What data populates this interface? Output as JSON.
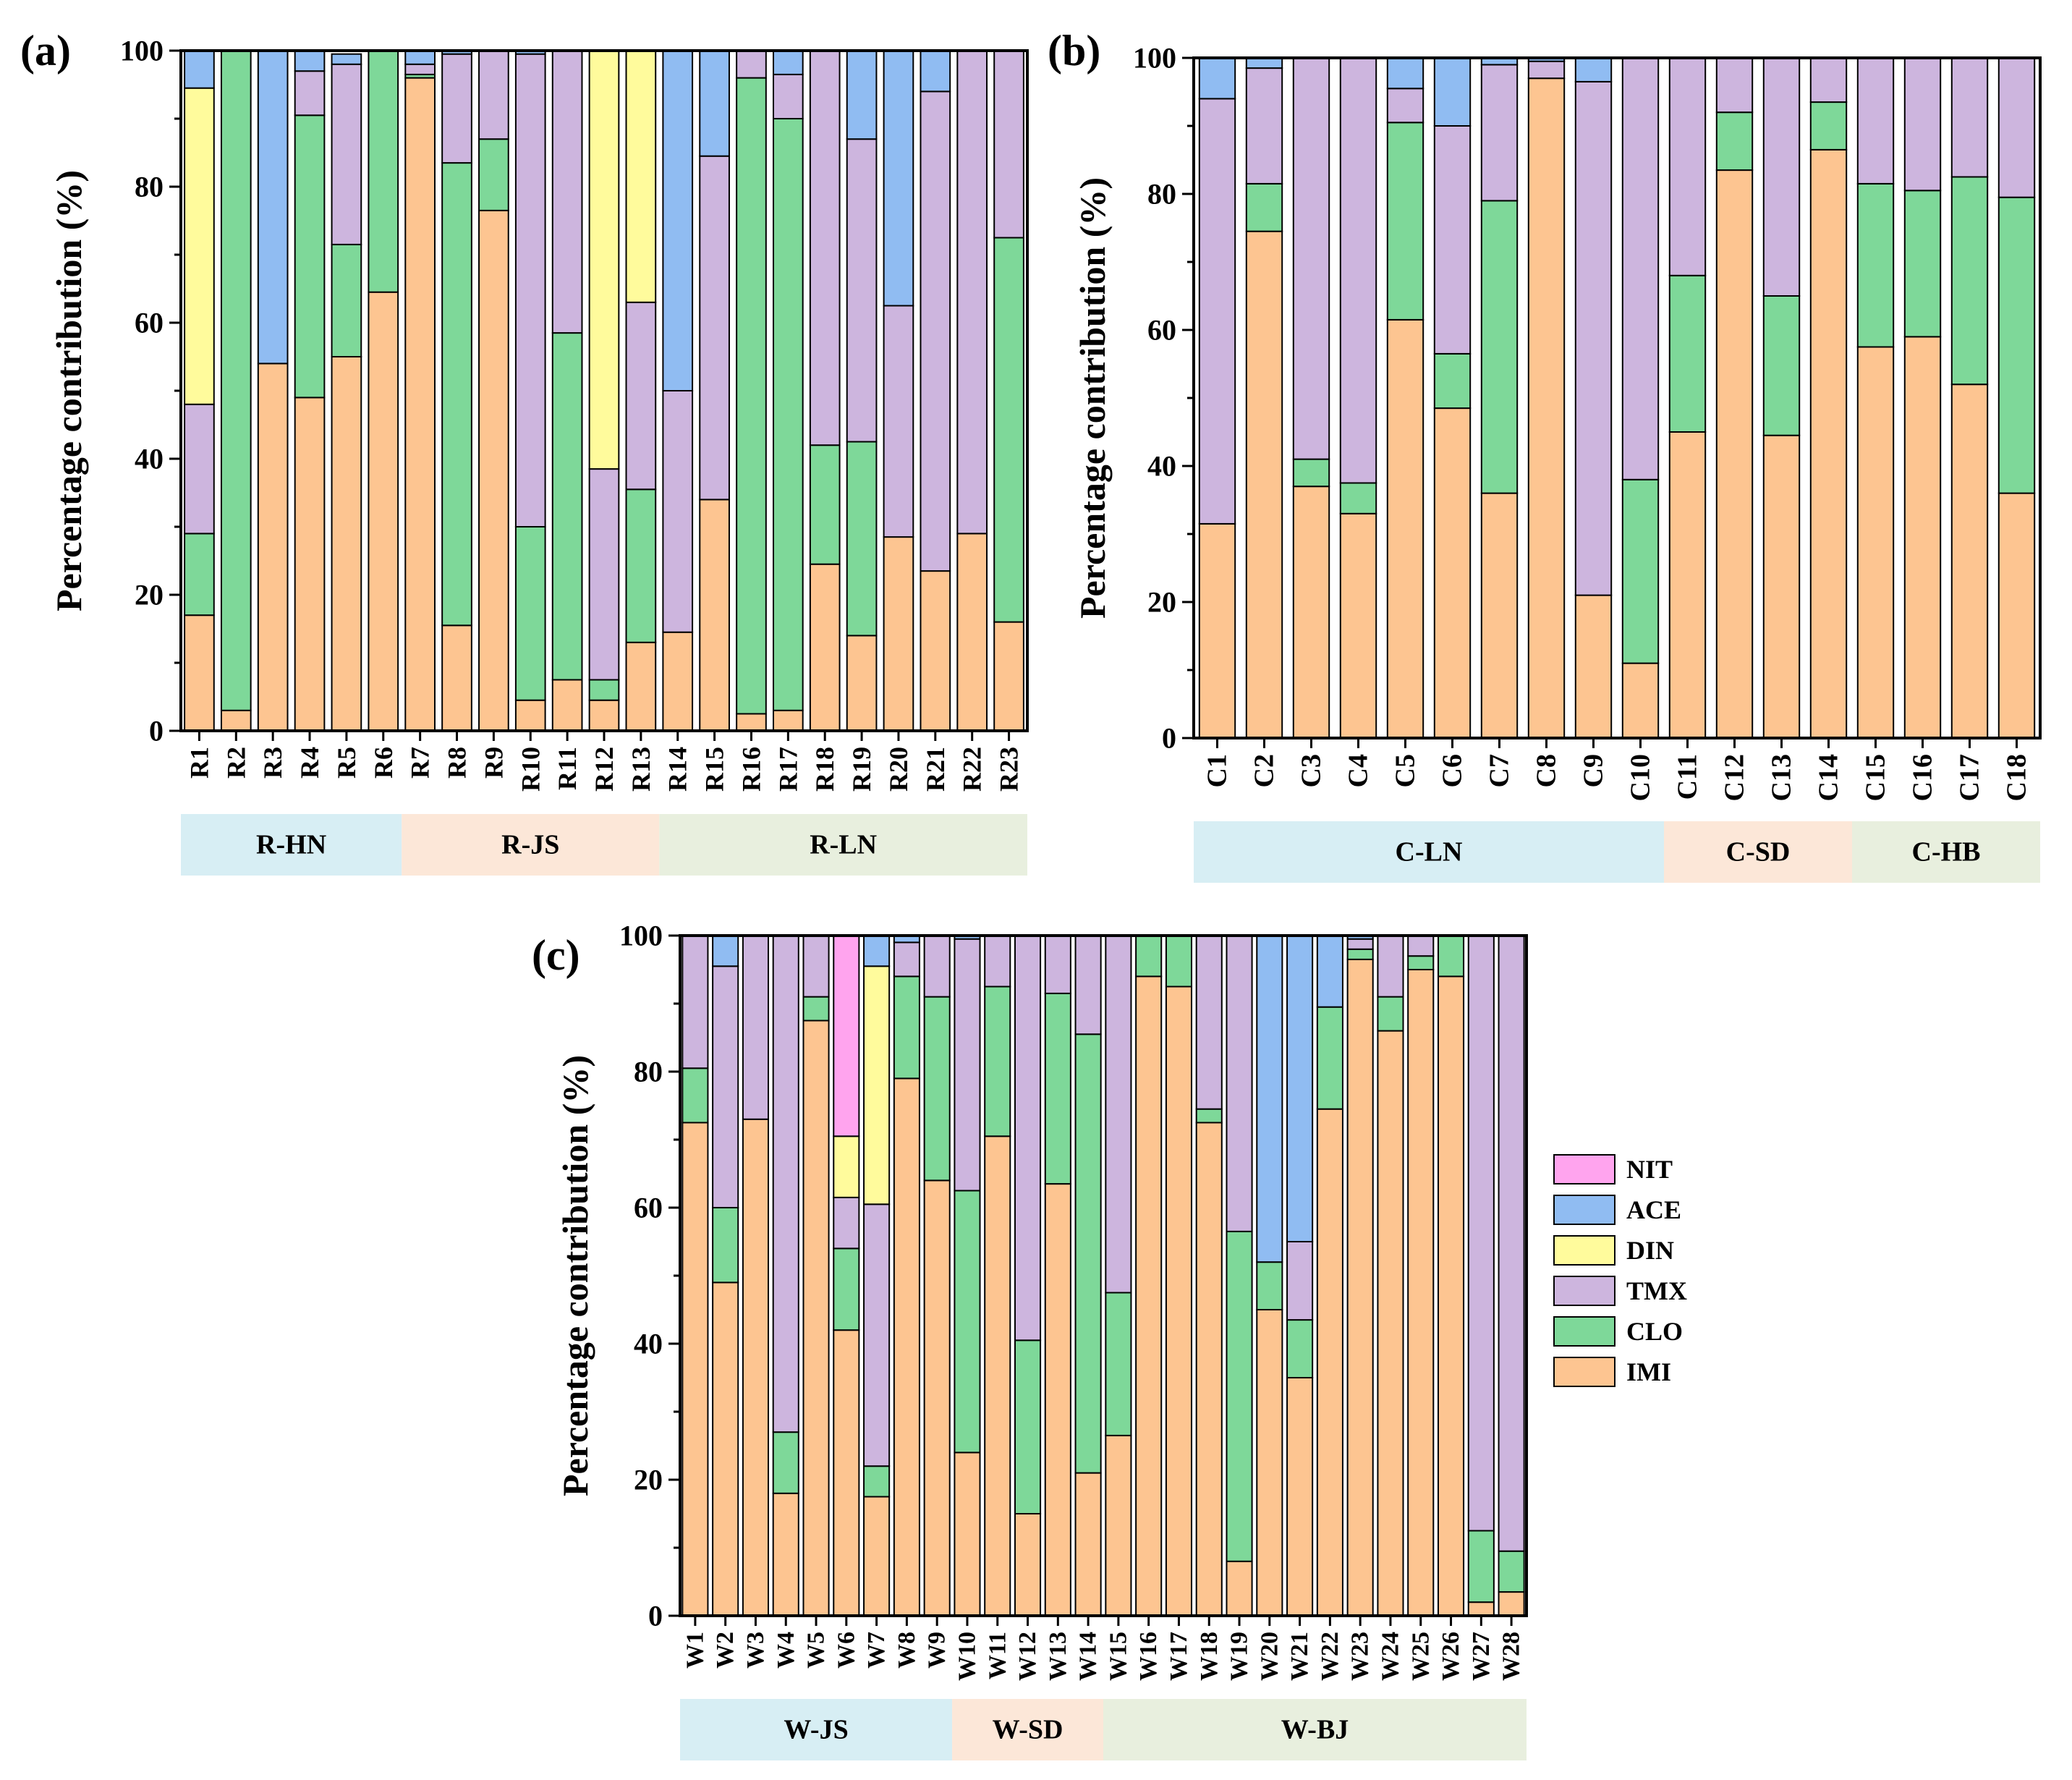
{
  "figure": {
    "panel_labels": [
      "(a)",
      "(b)",
      "(c)"
    ]
  },
  "colors": {
    "IMI": "#FDC591",
    "CLO": "#7ED899",
    "TMX": "#CDB5DE",
    "DIN": "#FFFB9C",
    "ACE": "#90BCF2",
    "NIT": "#FFA4EE",
    "group_blue": "#D7EEF4",
    "group_peach": "#FCE7D8",
    "group_green": "#E8EFDE"
  },
  "legend": {
    "entries": [
      {
        "key": "NIT",
        "label": "NIT"
      },
      {
        "key": "ACE",
        "label": "ACE"
      },
      {
        "key": "DIN",
        "label": "DIN"
      },
      {
        "key": "TMX",
        "label": "TMX"
      },
      {
        "key": "CLO",
        "label": "CLO"
      },
      {
        "key": "IMI",
        "label": "IMI"
      }
    ]
  },
  "chart_data": [
    {
      "panel": "(a)",
      "type": "bar",
      "stacked": true,
      "ylabel": "Percentage contribution (%)",
      "xlabel": "",
      "ylim": [
        0,
        100
      ],
      "yticks": [
        0,
        20,
        40,
        60,
        80,
        100
      ],
      "categories": [
        "R1",
        "R2",
        "R3",
        "R4",
        "R5",
        "R6",
        "R7",
        "R8",
        "R9",
        "R10",
        "R11",
        "R12",
        "R13",
        "R14",
        "R15",
        "R16",
        "R17",
        "R18",
        "R19",
        "R20",
        "R21",
        "R22",
        "R23"
      ],
      "series": [
        {
          "name": "IMI",
          "values": [
            17,
            3,
            54,
            49,
            55,
            64.5,
            96,
            15.5,
            76.5,
            4.5,
            7.5,
            4.5,
            13,
            14.5,
            34,
            2.5,
            3,
            24.5,
            14,
            28.5,
            23.5,
            29,
            16
          ]
        },
        {
          "name": "CLO",
          "values": [
            12,
            97,
            0,
            41.5,
            16.5,
            35.5,
            0.5,
            68,
            10.5,
            25.5,
            51,
            3,
            22.5,
            0,
            0,
            93.5,
            87,
            17.5,
            28.5,
            0,
            0,
            0,
            56.5
          ]
        },
        {
          "name": "TMX",
          "values": [
            19,
            0,
            0,
            6.5,
            26.5,
            0,
            1.5,
            16,
            13,
            69.5,
            41.5,
            31,
            27.5,
            35.5,
            50.5,
            4,
            6.5,
            58,
            44.5,
            34,
            70.5,
            71,
            27.5
          ]
        },
        {
          "name": "DIN",
          "values": [
            46.5,
            0,
            0,
            0,
            0,
            0,
            0,
            0,
            0,
            0,
            0,
            61.5,
            37,
            0,
            0,
            0,
            0,
            0,
            0,
            0,
            0,
            0,
            0
          ]
        },
        {
          "name": "ACE",
          "values": [
            5.5,
            0,
            46,
            3,
            1.5,
            0,
            2,
            0.5,
            0,
            0.5,
            0,
            0,
            0,
            50,
            15.5,
            0,
            3.5,
            0,
            13,
            37.5,
            6,
            0,
            0
          ]
        },
        {
          "name": "NIT",
          "values": [
            0,
            0,
            0,
            0,
            0,
            0,
            0,
            0,
            0,
            0,
            0,
            0,
            0,
            0,
            0,
            0,
            0,
            0,
            0,
            0,
            0,
            0,
            0
          ]
        }
      ],
      "groups": [
        {
          "label": "R-HN",
          "start": 0,
          "end": 5,
          "color": "group_blue"
        },
        {
          "label": "R-JS",
          "start": 6,
          "end": 12,
          "color": "group_peach"
        },
        {
          "label": "R-LN",
          "start": 13,
          "end": 22,
          "color": "group_green"
        }
      ]
    },
    {
      "panel": "(b)",
      "type": "bar",
      "stacked": true,
      "ylabel": "Percentage contribution (%)",
      "xlabel": "",
      "ylim": [
        0,
        100
      ],
      "yticks": [
        0,
        20,
        40,
        60,
        80,
        100
      ],
      "categories": [
        "C1",
        "C2",
        "C3",
        "C4",
        "C5",
        "C6",
        "C7",
        "C8",
        "C9",
        "C10",
        "C11",
        "C12",
        "C13",
        "C14",
        "C15",
        "C16",
        "C17",
        "C18"
      ],
      "series": [
        {
          "name": "IMI",
          "values": [
            31.5,
            74.5,
            37,
            33,
            61.5,
            48.5,
            36,
            97,
            21,
            11,
            45,
            83.5,
            44.5,
            86.5,
            57.5,
            59,
            52,
            36
          ]
        },
        {
          "name": "CLO",
          "values": [
            0,
            7,
            4,
            4.5,
            29,
            8,
            43,
            0,
            0,
            27,
            23,
            8.5,
            20.5,
            7,
            24,
            21.5,
            30.5,
            43.5
          ]
        },
        {
          "name": "TMX",
          "values": [
            62.5,
            17,
            59,
            62.5,
            5,
            33.5,
            20,
            2.5,
            75.5,
            62,
            32,
            8,
            35,
            6.5,
            18.5,
            19.5,
            17.5,
            20.5
          ]
        },
        {
          "name": "DIN",
          "values": [
            0,
            0,
            0,
            0,
            0,
            0,
            0,
            0,
            0,
            0,
            0,
            0,
            0,
            0,
            0,
            0,
            0,
            0
          ]
        },
        {
          "name": "ACE",
          "values": [
            6,
            1.5,
            0,
            0,
            4.5,
            10,
            1,
            0.5,
            3.5,
            0,
            0,
            0,
            0,
            0,
            0,
            0,
            0,
            0
          ]
        },
        {
          "name": "NIT",
          "values": [
            0,
            0,
            0,
            0,
            0,
            0,
            0,
            0,
            0,
            0,
            0,
            0,
            0,
            0,
            0,
            0,
            0,
            0
          ]
        }
      ],
      "groups": [
        {
          "label": "C-LN",
          "start": 0,
          "end": 9,
          "color": "group_blue"
        },
        {
          "label": "C-SD",
          "start": 10,
          "end": 13,
          "color": "group_peach"
        },
        {
          "label": "C-HB",
          "start": 14,
          "end": 17,
          "color": "group_green"
        }
      ]
    },
    {
      "panel": "(c)",
      "type": "bar",
      "stacked": true,
      "ylabel": "Percentage contribution (%)",
      "xlabel": "",
      "ylim": [
        0,
        100
      ],
      "yticks": [
        0,
        20,
        40,
        60,
        80,
        100
      ],
      "categories": [
        "W1",
        "W2",
        "W3",
        "W4",
        "W5",
        "W6",
        "W7",
        "W8",
        "W9",
        "W10",
        "W11",
        "W12",
        "W13",
        "W14",
        "W15",
        "W16",
        "W17",
        "W18",
        "W19",
        "W20",
        "W21",
        "W22",
        "W23",
        "W24",
        "W25",
        "W26",
        "W27",
        "W28"
      ],
      "series": [
        {
          "name": "IMI",
          "values": [
            72.5,
            49,
            73,
            18,
            87.5,
            42,
            17.5,
            79,
            64,
            24,
            70.5,
            15,
            63.5,
            21,
            26.5,
            94,
            92.5,
            72.5,
            8,
            45,
            35,
            74.5,
            96.5,
            86,
            95,
            94,
            2,
            3.5
          ]
        },
        {
          "name": "CLO",
          "values": [
            8,
            11,
            0,
            9,
            3.5,
            12,
            4.5,
            15,
            27,
            38.5,
            22,
            25.5,
            28,
            64.5,
            21,
            6,
            7.5,
            2,
            48.5,
            7,
            8.5,
            15,
            1.5,
            5,
            2,
            6,
            10.5,
            6
          ]
        },
        {
          "name": "TMX",
          "values": [
            19.5,
            35.5,
            27,
            73,
            9,
            7.5,
            38.5,
            5,
            9,
            37,
            7.5,
            59.5,
            8.5,
            14.5,
            52.5,
            0,
            0,
            25.5,
            43.5,
            0,
            11.5,
            0,
            1.5,
            9,
            3,
            0,
            87.5,
            90.5
          ]
        },
        {
          "name": "DIN",
          "values": [
            0,
            0,
            0,
            0,
            0,
            9,
            35,
            0,
            0,
            0,
            0,
            0,
            0,
            0,
            0,
            0,
            0,
            0,
            0,
            0,
            0,
            0,
            0,
            0,
            0,
            0,
            0,
            0
          ]
        },
        {
          "name": "ACE",
          "values": [
            0,
            4.5,
            0,
            0,
            0,
            0,
            4.5,
            1,
            0,
            0.5,
            0,
            0,
            0,
            0,
            0,
            0,
            0,
            0,
            0,
            48,
            45,
            10.5,
            0.5,
            0,
            0,
            0,
            0,
            0
          ]
        },
        {
          "name": "NIT",
          "values": [
            0,
            0,
            0,
            0,
            0,
            29.5,
            0,
            0,
            0,
            0,
            0,
            0,
            0,
            0,
            0,
            0,
            0,
            0,
            0,
            0,
            0,
            0,
            0,
            0,
            0,
            0,
            0,
            0
          ]
        }
      ],
      "groups": [
        {
          "label": "W-JS",
          "start": 0,
          "end": 8,
          "color": "group_blue"
        },
        {
          "label": "W-SD",
          "start": 9,
          "end": 13,
          "color": "group_peach"
        },
        {
          "label": "W-BJ",
          "start": 14,
          "end": 27,
          "color": "group_green"
        }
      ]
    }
  ]
}
